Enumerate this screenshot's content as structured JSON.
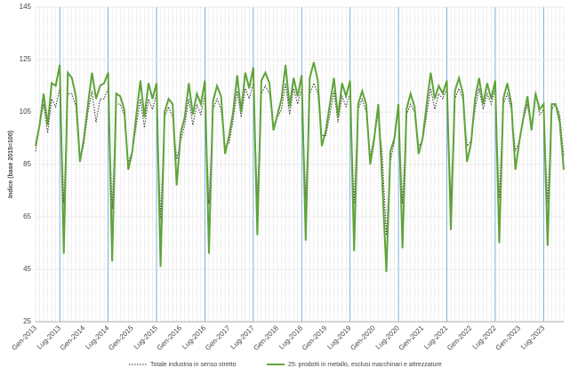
{
  "chart_data": {
    "type": "line",
    "y_label": "Indice (base 2015=100)",
    "categories": [
      "Gen-2013",
      null,
      null,
      null,
      null,
      null,
      "Lug-2013",
      null,
      null,
      null,
      null,
      null,
      "Gen-2014",
      null,
      null,
      null,
      null,
      null,
      "Lug-2014",
      null,
      null,
      null,
      null,
      null,
      "Gen-2015",
      null,
      null,
      null,
      null,
      null,
      "Lug-2015",
      null,
      null,
      null,
      null,
      null,
      "Gen-2016",
      null,
      null,
      null,
      null,
      null,
      "Lug-2016",
      null,
      null,
      null,
      null,
      null,
      "Gen-2017",
      null,
      null,
      null,
      null,
      null,
      "Lug-2017",
      null,
      null,
      null,
      null,
      null,
      "Gen-2018",
      null,
      null,
      null,
      null,
      null,
      "Lug-2018",
      null,
      null,
      null,
      null,
      null,
      "Gen-2019",
      null,
      null,
      null,
      null,
      null,
      "Lug-2019",
      null,
      null,
      null,
      null,
      null,
      "Gen-2020",
      null,
      null,
      null,
      null,
      null,
      "Lug-2020",
      null,
      null,
      null,
      null,
      null,
      "Gen-2021",
      null,
      null,
      null,
      null,
      null,
      "Lug-2021",
      null,
      null,
      null,
      null,
      null,
      "Gen-2022",
      null,
      null,
      null,
      null,
      null,
      "Lug-2022",
      null,
      null,
      null,
      null,
      null,
      "Gen-2023",
      null,
      null,
      null,
      null,
      null,
      "Lug-2023",
      null,
      null,
      null,
      null,
      null
    ],
    "series": [
      {
        "name": "Totale industria in senso stretto",
        "color": "#333333",
        "dash": true,
        "values": [
          90,
          100,
          108,
          97,
          110,
          107,
          114,
          70,
          112,
          112,
          107,
          86,
          93,
          105,
          113,
          101,
          110,
          110,
          114,
          68,
          108,
          108,
          104,
          86,
          90,
          100,
          110,
          99,
          110,
          106,
          112,
          64,
          103,
          107,
          103,
          87,
          94,
          100,
          110,
          100,
          108,
          104,
          112,
          70,
          106,
          110,
          106,
          92,
          93,
          102,
          113,
          103,
          114,
          110,
          116,
          72,
          112,
          115,
          112,
          100,
          103,
          106,
          116,
          104,
          114,
          108,
          114,
          72,
          112,
          116,
          112,
          96,
          96,
          104,
          113,
          101,
          111,
          107,
          112,
          70,
          106,
          110,
          105,
          88,
          96,
          104,
          88,
          58,
          86,
          94,
          106,
          70,
          104,
          108,
          105,
          92,
          94,
          104,
          114,
          106,
          112,
          110,
          114,
          72,
          110,
          114,
          110,
          92,
          94,
          106,
          114,
          106,
          112,
          108,
          114,
          72,
          108,
          112,
          106,
          90,
          94,
          102,
          108,
          98,
          113,
          104,
          106,
          70,
          106,
          108,
          104,
          88
        ]
      },
      {
        "name": "25: prodotti in metallo, esclusi macchinari e attrezzature",
        "color": "#5fa33a",
        "dash": false,
        "values": [
          92,
          100,
          112,
          100,
          116,
          115,
          123,
          51,
          120,
          118,
          111,
          86,
          95,
          108,
          120,
          110,
          115,
          116,
          120,
          48,
          112,
          111,
          106,
          83,
          90,
          104,
          117,
          103,
          116,
          110,
          116,
          46,
          105,
          110,
          108,
          77,
          97,
          103,
          116,
          104,
          112,
          108,
          117,
          51,
          109,
          115,
          111,
          89,
          96,
          105,
          119,
          105,
          120,
          114,
          122,
          58,
          117,
          120,
          116,
          98,
          104,
          110,
          123,
          107,
          118,
          111,
          119,
          56,
          118,
          124,
          117,
          92,
          98,
          108,
          118,
          103,
          116,
          111,
          117,
          52,
          108,
          113,
          108,
          85,
          95,
          108,
          78,
          44,
          90,
          95,
          108,
          53,
          106,
          112,
          107,
          89,
          95,
          108,
          120,
          110,
          115,
          112,
          117,
          60,
          113,
          118,
          112,
          86,
          93,
          110,
          118,
          108,
          116,
          110,
          117,
          55,
          110,
          116,
          108,
          83,
          94,
          103,
          111,
          98,
          112,
          106,
          108,
          54,
          108,
          108,
          101,
          83
        ]
      }
    ],
    "ylim": [
      25,
      145
    ],
    "yticks": [
      25,
      45,
      65,
      85,
      105,
      125,
      145
    ],
    "grid": true
  }
}
